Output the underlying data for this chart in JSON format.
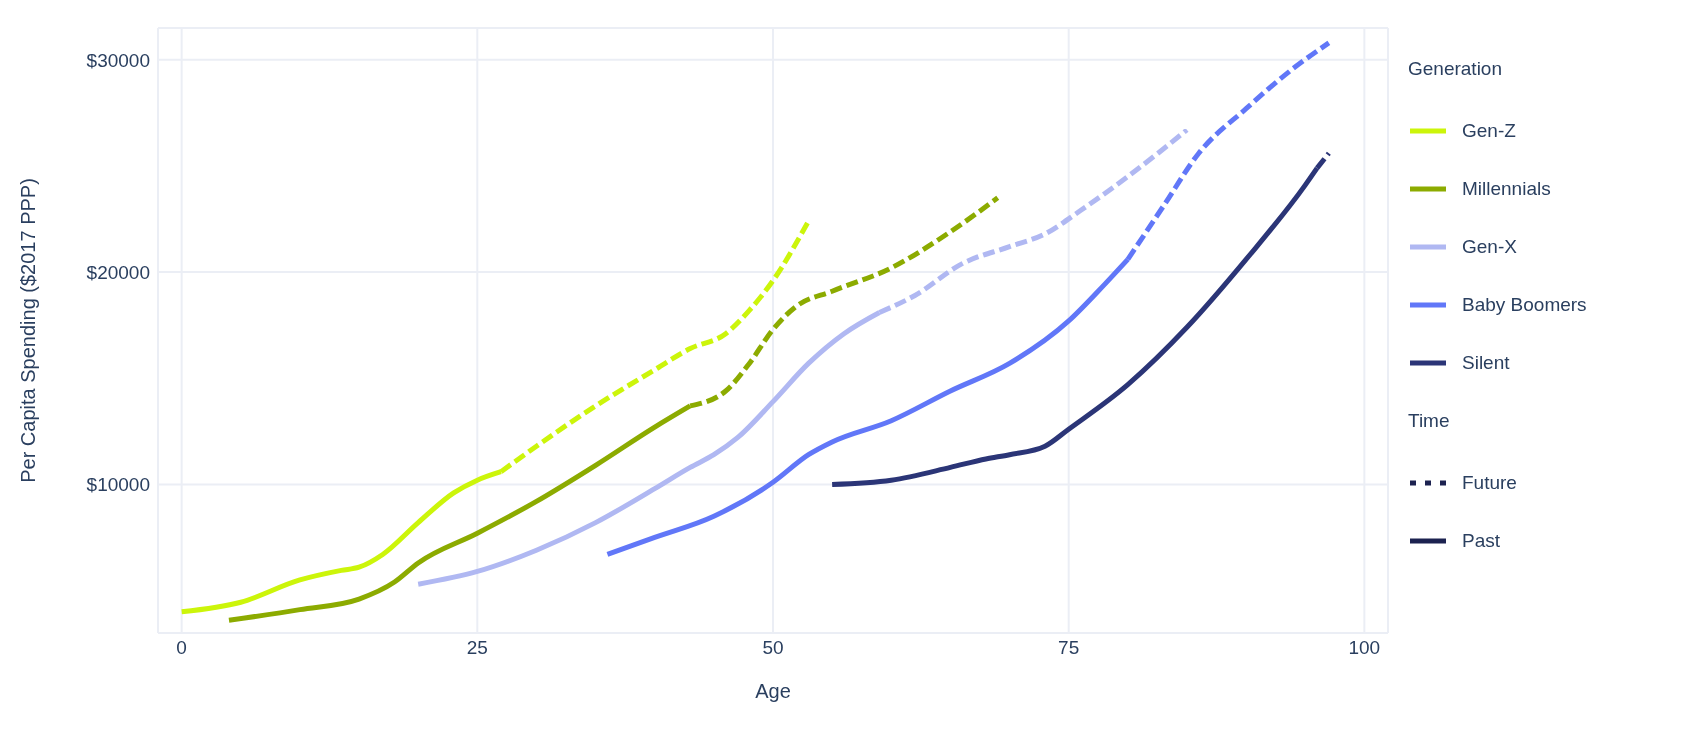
{
  "chart_data": {
    "type": "line",
    "xlabel": "Age",
    "ylabel": "Per Capita Spending ($2017 PPP)",
    "legend_title": "Generation",
    "legend": "right",
    "grid": true,
    "xlim": [
      -2,
      102
    ],
    "xticks": [
      0,
      25,
      50,
      75,
      100
    ],
    "ylim": [
      3000,
      31500
    ],
    "yticks": [
      {
        "value": 10000,
        "label": "$10000"
      },
      {
        "value": 20000,
        "label": "$20000"
      },
      {
        "value": 30000,
        "label": "$30000"
      }
    ],
    "annotations": [
      "Time",
      "Future",
      "Past"
    ],
    "series": [
      {
        "name": "Gen-Z",
        "color": "#ccf50a",
        "line_style": "solid",
        "x": [
          0,
          5,
          10,
          13.5,
          15,
          17,
          20,
          23,
          25,
          27
        ],
        "values": [
          4000,
          4450,
          5500,
          5950,
          6100,
          6700,
          8200,
          9600,
          10200,
          10600
        ]
      },
      {
        "name": "Millennials",
        "color": "#8cab00",
        "line_style": "solid",
        "x": [
          4,
          10,
          15,
          18,
          20,
          25,
          30,
          35,
          40,
          43
        ],
        "values": [
          3600,
          4100,
          4600,
          5400,
          6300,
          7700,
          9200,
          10900,
          12700,
          13700
        ]
      },
      {
        "name": "Gen-X",
        "color": "#b0b8f2",
        "line_style": "solid",
        "x": [
          20,
          25,
          30,
          35,
          40,
          43,
          45,
          47,
          50,
          53,
          56,
          59
        ],
        "values": [
          5300,
          5900,
          6900,
          8200,
          9800,
          10800,
          11400,
          12200,
          13900,
          15700,
          17100,
          18100
        ]
      },
      {
        "name": "Baby Boomers",
        "color": "#6177f8",
        "line_style": "solid",
        "x": [
          36,
          40,
          45,
          50,
          53,
          55,
          60,
          65,
          70,
          75,
          78,
          80
        ],
        "values": [
          6700,
          7500,
          8500,
          10100,
          11400,
          12000,
          13000,
          14400,
          15700,
          17700,
          19400,
          20600
        ]
      },
      {
        "name": "Silent",
        "color": "#2b3577",
        "line_style": "solid",
        "x": [
          55,
          60,
          65,
          68,
          70,
          73,
          75,
          80,
          85,
          90,
          95,
          96
        ],
        "values": [
          10000,
          10200,
          10800,
          11200,
          11400,
          11800,
          12600,
          14700,
          17400,
          20600,
          24100,
          24900
        ]
      },
      {
        "color": "#ccf50a",
        "line_style": "dashed",
        "x": [
          27,
          30,
          35,
          40,
          43,
          46,
          48,
          50,
          53
        ],
        "values": [
          10600,
          11800,
          13700,
          15400,
          16400,
          17100,
          18200,
          19600,
          22400
        ]
      },
      {
        "color": "#8cab00",
        "line_style": "dashed",
        "x": [
          43,
          46,
          48,
          50,
          52,
          55,
          60,
          65,
          69
        ],
        "values": [
          13700,
          14400,
          15700,
          17300,
          18400,
          19100,
          20200,
          21900,
          23500
        ]
      },
      {
        "color": "#b0b8f2",
        "line_style": "dashed",
        "x": [
          59,
          62,
          66,
          70,
          73,
          76,
          80,
          85
        ],
        "values": [
          18100,
          18900,
          20400,
          21200,
          21800,
          22900,
          24500,
          26700
        ]
      },
      {
        "color": "#6177f8",
        "line_style": "dashed",
        "x": [
          80,
          83,
          86,
          90,
          94,
          97
        ],
        "values": [
          20600,
          23100,
          25600,
          27700,
          29600,
          30800
        ]
      },
      {
        "color": "#2b3577",
        "line_style": "dashed",
        "x": [
          96,
          97
        ],
        "values": [
          24900,
          25600
        ]
      }
    ]
  }
}
